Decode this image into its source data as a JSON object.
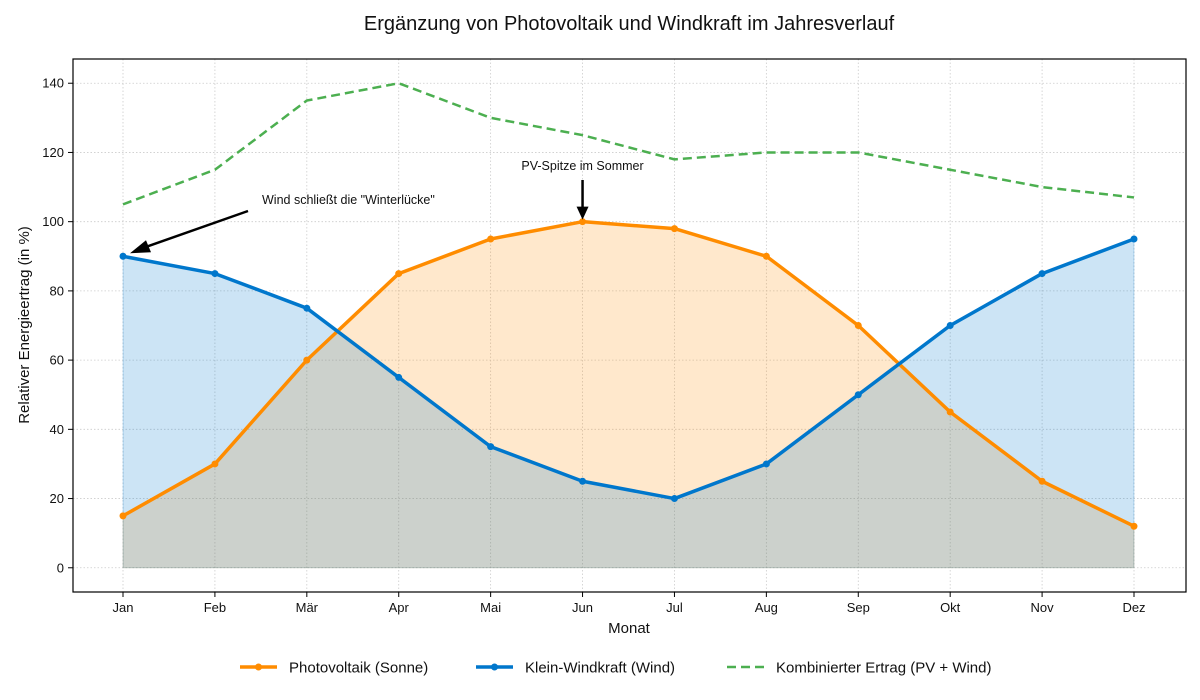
{
  "chart_data": {
    "type": "line",
    "title": "Ergänzung von Photovoltaik und Windkraft im Jahresverlauf",
    "xlabel": "Monat",
    "ylabel": "Relativer Energieertrag (in %)",
    "categories": [
      "Jan",
      "Feb",
      "Mär",
      "Apr",
      "Mai",
      "Jun",
      "Jul",
      "Aug",
      "Sep",
      "Okt",
      "Nov",
      "Dez"
    ],
    "yticks": [
      "0",
      "20",
      "40",
      "60",
      "80",
      "100",
      "120",
      "140"
    ],
    "ylim": [
      -7,
      147
    ],
    "grid": true,
    "legend_position": "bottom-center",
    "series": [
      {
        "name": "Photovoltaik (Sonne)",
        "values": [
          15,
          30,
          60,
          85,
          95,
          100,
          98,
          90,
          70,
          45,
          25,
          12
        ],
        "color": "#FF8C00",
        "style": "solid",
        "markers": true,
        "fill": true
      },
      {
        "name": "Klein-Windkraft (Wind)",
        "values": [
          90,
          85,
          75,
          55,
          35,
          25,
          20,
          30,
          50,
          70,
          85,
          95
        ],
        "color": "#0077CC",
        "style": "solid",
        "markers": true,
        "fill": true
      },
      {
        "name": "Kombinierter Ertrag (PV + Wind)",
        "values": [
          105,
          115,
          135,
          140,
          130,
          125,
          118,
          120,
          120,
          115,
          110,
          107
        ],
        "color": "#4CAF50",
        "style": "dashed",
        "markers": false,
        "fill": false
      }
    ],
    "annotations": [
      {
        "text": "Wind schließt die \"Winterlücke\"",
        "target_category": "Jan",
        "target_value": 90
      },
      {
        "text": "PV-Spitze im Sommer",
        "target_category": "Jun",
        "target_value": 100
      }
    ]
  }
}
